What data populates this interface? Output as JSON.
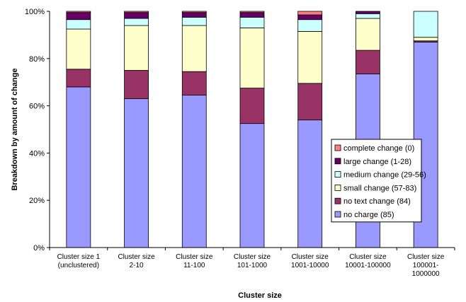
{
  "chart_data": {
    "type": "bar",
    "stacked": true,
    "percent": true,
    "title": "",
    "xlabel": "Cluster size",
    "ylabel": "Breakdown by amount of change",
    "ylim": [
      0,
      100
    ],
    "yticks": [
      "0%",
      "20%",
      "40%",
      "60%",
      "80%",
      "100%"
    ],
    "grid": false,
    "legend_position": "right",
    "categories": [
      [
        "Cluster size 1",
        "(unclustered)"
      ],
      [
        "Cluster size",
        "2-10"
      ],
      [
        "Cluster size",
        "11-100"
      ],
      [
        "Cluster size",
        "101-1000"
      ],
      [
        "Cluster size",
        "1001-10000"
      ],
      [
        "Cluster size",
        "10001-100000"
      ],
      [
        "Cluster size",
        "100001-",
        "1000000"
      ]
    ],
    "series": [
      {
        "name": "no charge (85)",
        "color": "#9999ff",
        "values": [
          68,
          63,
          64.5,
          52.5,
          54,
          73.5,
          87
        ]
      },
      {
        "name": "no text change (84)",
        "color": "#993366",
        "values": [
          7.5,
          12,
          10,
          15,
          15.5,
          10,
          0.5
        ]
      },
      {
        "name": "small change (57-83)",
        "color": "#ffffcc",
        "values": [
          17,
          19,
          19.5,
          25.5,
          22,
          13.5,
          1.5
        ]
      },
      {
        "name": "medium change (29-56)",
        "color": "#ccffff",
        "values": [
          4,
          3,
          3.5,
          4.5,
          5,
          2,
          11
        ]
      },
      {
        "name": "large change (1-28)",
        "color": "#660066",
        "values": [
          3,
          2.5,
          2,
          2,
          2,
          1,
          0
        ]
      },
      {
        "name": "complete change (0)",
        "color": "#ff8080",
        "values": [
          0.5,
          0.5,
          0.5,
          0.5,
          1.5,
          0,
          0
        ]
      }
    ],
    "legend_order": [
      5,
      4,
      3,
      2,
      1,
      0
    ]
  }
}
